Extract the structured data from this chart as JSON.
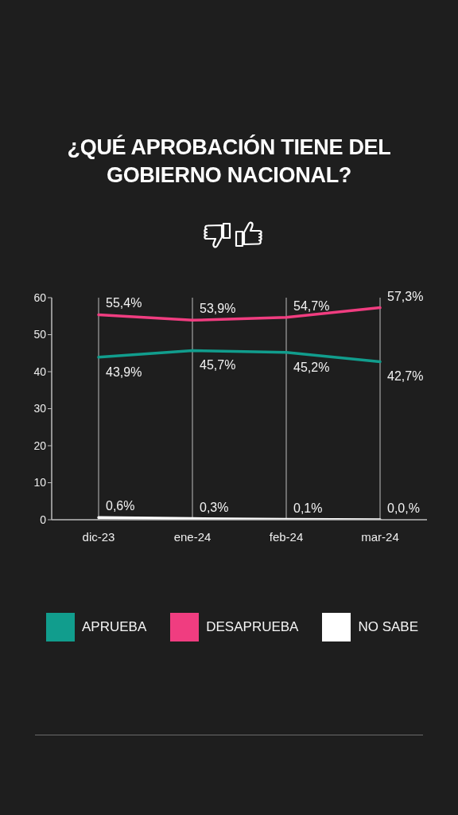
{
  "chart_data": {
    "type": "line",
    "title": "¿QUÉ APROBACIÓN TIENE DEL GOBIERNO NACIONAL?",
    "categories": [
      "dic-23",
      "ene-24",
      "feb-24",
      "mar-24"
    ],
    "series": [
      {
        "name": "APRUEBA",
        "color": "#119d8d",
        "values": [
          43.9,
          45.7,
          45.2,
          42.7
        ],
        "value_labels": [
          "43,9%",
          "45,7%",
          "45,2%",
          "42,7%"
        ]
      },
      {
        "name": "DESAPRUEBA",
        "color": "#f03d80",
        "values": [
          55.4,
          53.9,
          54.7,
          57.3
        ],
        "value_labels": [
          "55,4%",
          "53,9%",
          "54,7%",
          "57,3%"
        ]
      },
      {
        "name": "NO SABE",
        "color": "#ffffff",
        "values": [
          0.6,
          0.3,
          0.1,
          0.0
        ],
        "value_labels": [
          "0,6%",
          "0,3%",
          "0,1%",
          "0,0,%"
        ]
      }
    ],
    "ylim": [
      0,
      60
    ],
    "yticks": [
      0,
      10,
      20,
      30,
      40,
      50,
      60
    ],
    "grid": "x",
    "legend": "bottom",
    "marker": "none",
    "line_style": "solid"
  }
}
